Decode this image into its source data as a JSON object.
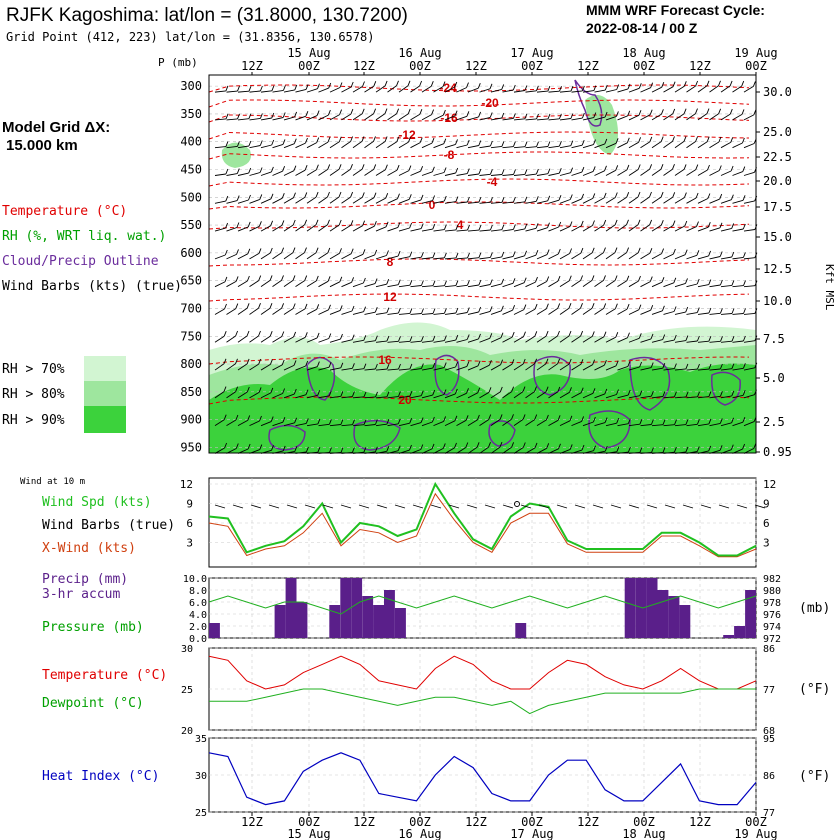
{
  "header": {
    "station_title": "RJFK Kagoshima:  lat/lon = (31.8000, 130.7200)",
    "grid_point": "Grid Point (412, 223) lat/lon = (31.8356, 130.6578)",
    "model_line1": "MMM WRF Forecast Cycle:",
    "model_line2": "2022-08-14 / 00  Z"
  },
  "left_panel": {
    "model_grid_label": "Model Grid ΔX:",
    "model_grid_value": "15.000 km",
    "legend_temperature": "Temperature (°C)",
    "legend_rh": "RH (%, WRT liq. wat.)",
    "legend_cloud": "Cloud/Precip Outline",
    "legend_wind": "Wind Barbs (kts) (true)",
    "rh70": "RH > 70%",
    "rh80": "RH > 80%",
    "rh90": "RH > 90%"
  },
  "colors": {
    "temperature": "#e00000",
    "rh": "#00a000",
    "cloud": "#6a2c9c",
    "rh70": "#d2f5d2",
    "rh80": "#9ee69e",
    "rh90": "#3cd23c",
    "precip": "#5a1f8a",
    "heat_index": "#0000c0",
    "xwind": "#d04010",
    "wind_spd": "#20c020"
  },
  "time_axis": {
    "top_hours": [
      "12Z",
      "00Z",
      "12Z",
      "00Z",
      "12Z",
      "00Z",
      "12Z",
      "00Z",
      "12Z",
      "00Z"
    ],
    "top_dates": [
      "15 Aug",
      "16 Aug",
      "17 Aug",
      "18 Aug",
      "19 Aug"
    ],
    "p_label": "P (mb)"
  },
  "chart_data": [
    {
      "type": "line",
      "title": "Upper-air cross section",
      "ylabel": "P (mb)",
      "pressure_levels": [
        300,
        350,
        400,
        450,
        500,
        550,
        600,
        650,
        700,
        750,
        800,
        850,
        900,
        950
      ],
      "right_axis_label": "Kft MSL",
      "right_axis_ticks": [
        "30.0",
        "25.0",
        "22.5",
        "20.0",
        "17.5",
        "15.0",
        "12.5",
        "10.0",
        "7.5",
        "5.0",
        "2.5",
        "0.95"
      ],
      "temperature_labels": [
        "-24",
        "-20",
        "-16",
        "-12",
        "-8",
        "-4",
        "0",
        "4",
        "8",
        "12",
        "16",
        "20"
      ]
    },
    {
      "type": "line",
      "title": "Wind at 10 m",
      "series": [
        {
          "name": "Wind Spd (kts)",
          "values": [
            7,
            6.7,
            1.5,
            2.5,
            3.2,
            5.5,
            9,
            3,
            6,
            5.5,
            4,
            5,
            12,
            7.5,
            3.5,
            2,
            7,
            9,
            8.5,
            3.3,
            2,
            2,
            2,
            2,
            4.5,
            4.5,
            3,
            1,
            1,
            2.5
          ]
        },
        {
          "name": "X-Wind (kts)",
          "values": [
            6,
            5.5,
            1,
            2,
            2.5,
            4.5,
            7.5,
            2.5,
            5,
            4.5,
            3,
            4,
            10.5,
            6.5,
            3,
            1.5,
            6,
            7.5,
            7.5,
            2.8,
            1.5,
            1.5,
            1.5,
            1.5,
            4,
            4,
            2.5,
            0.8,
            0.8,
            2
          ]
        }
      ],
      "y_ticks": [
        "3",
        "6",
        "9",
        "12"
      ],
      "legend": [
        "Wind Spd (kts)",
        "Wind Barbs (true)",
        "X-Wind (kts)"
      ],
      "label_top": "Wind at 10 m"
    },
    {
      "type": "bar",
      "title": "Precip (mm) 3-hr accum",
      "values": [
        2.5,
        0,
        0,
        0,
        0,
        0,
        5.5,
        10,
        6,
        0,
        0,
        5.5,
        10,
        10,
        7,
        5.5,
        8,
        5,
        0,
        0,
        0,
        0,
        0,
        0,
        0,
        0,
        0,
        0,
        2.5,
        0,
        0,
        0,
        0,
        0,
        0,
        0,
        0,
        0,
        10,
        10,
        10,
        8,
        7,
        5.5,
        0,
        0,
        0,
        0.5,
        2,
        8
      ],
      "y_ticks": [
        "0.0",
        "2.0",
        "4.0",
        "6.0",
        "8.0",
        "10.0"
      ],
      "pressure_ticks": [
        "972",
        "974",
        "976",
        "978",
        "980",
        "982"
      ],
      "pressure_label": "(mb)",
      "pressure_series": [
        978,
        979,
        978,
        977,
        978,
        978,
        977,
        976,
        978,
        979,
        978,
        977,
        978,
        979,
        978,
        977,
        978,
        979,
        978,
        977,
        978,
        979,
        978,
        977,
        978,
        979,
        978,
        977,
        978,
        979
      ],
      "legend": [
        "Precip (mm)",
        "3-hr accum",
        "Pressure (mb)"
      ]
    },
    {
      "type": "line",
      "title": "Temperature / Dewpoint",
      "series": [
        {
          "name": "Temperature (°C)",
          "values": [
            29,
            28.5,
            26,
            25,
            25.5,
            27,
            28,
            29,
            28,
            26,
            25.5,
            25,
            27.5,
            29,
            28,
            26,
            25,
            25,
            27,
            28.5,
            28,
            26.5,
            25.5,
            25,
            26,
            27.5,
            26,
            25,
            25,
            26
          ]
        },
        {
          "name": "Dewpoint (°C)",
          "values": [
            23.5,
            23.5,
            23.5,
            24,
            24.5,
            25,
            25,
            24.5,
            24,
            23.5,
            23,
            23.5,
            24,
            24,
            23.5,
            23,
            23.5,
            22,
            23,
            23.5,
            24,
            24.5,
            24.5,
            24.5,
            24.5,
            24.5,
            25,
            25,
            25,
            25
          ]
        }
      ],
      "y_ticks": [
        "20",
        "25",
        "30"
      ],
      "f_ticks": [
        "68",
        "77",
        "86"
      ],
      "f_label": "(°F)"
    },
    {
      "type": "line",
      "title": "Heat Index",
      "series": [
        {
          "name": "Heat Index (°C)",
          "values": [
            33,
            32.5,
            27,
            26,
            26.5,
            30.5,
            32,
            33,
            32,
            27.5,
            27,
            26.5,
            30,
            32.5,
            31,
            27.5,
            26.5,
            26.5,
            30,
            32,
            32,
            28,
            26.5,
            26.5,
            29,
            31.5,
            26.5,
            26,
            26,
            29
          ]
        }
      ],
      "y_ticks": [
        "25",
        "30",
        "35"
      ],
      "f_ticks": [
        "77",
        "86",
        "95"
      ],
      "f_label": "(°F)"
    }
  ],
  "bottom_axis": {
    "hours": [
      "12Z",
      "00Z",
      "12Z",
      "00Z",
      "12Z",
      "00Z",
      "12Z",
      "00Z",
      "12Z",
      "00Z"
    ],
    "dates": [
      "15 Aug",
      "16 Aug",
      "17 Aug",
      "18 Aug",
      "19 Aug"
    ]
  }
}
